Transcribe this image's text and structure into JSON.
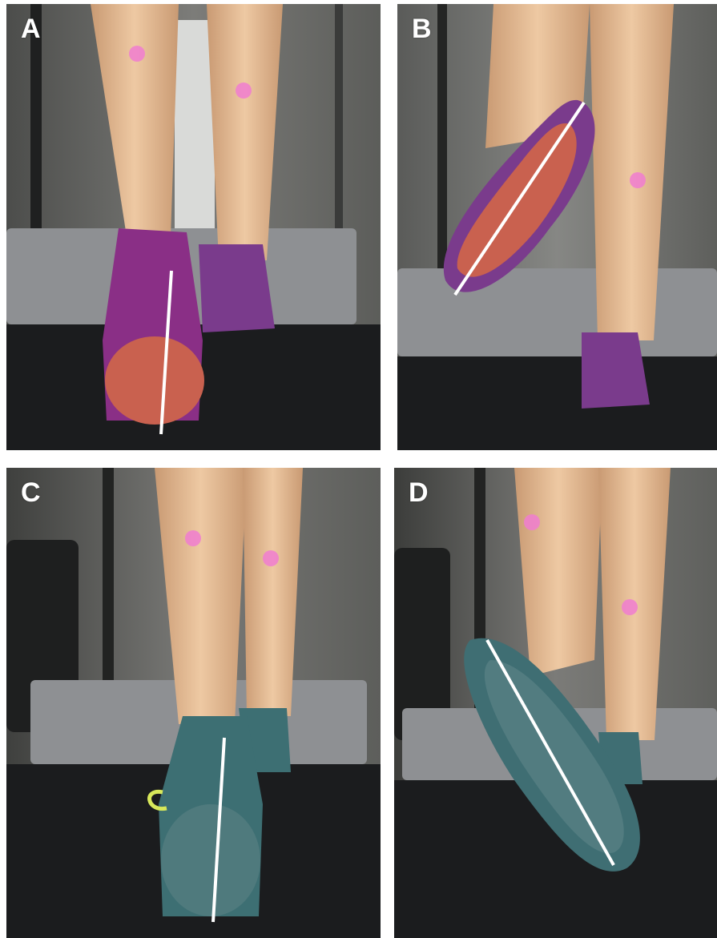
{
  "panels": [
    {
      "id": "a",
      "label": "A",
      "shoe_color": "#8a2f86",
      "sole_color": "#c9614f",
      "line_angle_deg": 4
    },
    {
      "id": "b",
      "label": "B",
      "shoe_color": "#7a3b8c",
      "sole_color": "#c9614f",
      "line_angle_deg": 40
    },
    {
      "id": "c",
      "label": "C",
      "shoe_color": "#3d6f73",
      "sole_color": "#4f7a7d",
      "line_angle_deg": 4
    },
    {
      "id": "d",
      "label": "D",
      "shoe_color": "#3f6e73",
      "sole_color": "#527c80",
      "line_angle_deg": -30
    }
  ],
  "colors": {
    "background": "#ffffff",
    "skin": "#e8c4a0",
    "treadmill_belt": "#1b1c1e",
    "treadmill_deck": "#8e9093",
    "wall": "#6f6f6c",
    "marker": "#f07cd0",
    "reference_line": "#ffffff"
  }
}
